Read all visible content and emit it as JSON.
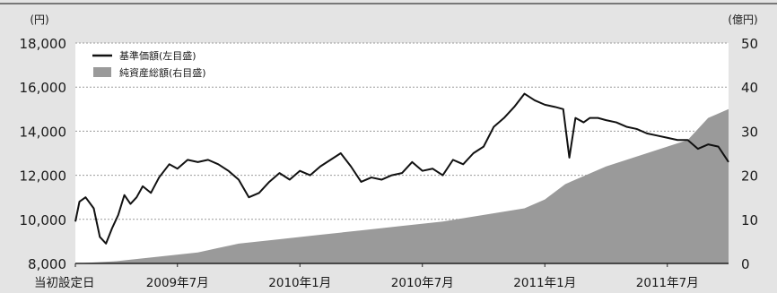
{
  "chart_data": {
    "type": "line",
    "y_unit_left": "(円)",
    "y_unit_right": "(億円)",
    "ylim_left": [
      8000,
      18000
    ],
    "ylim_right": [
      0,
      50
    ],
    "yticks_left": [
      "8,000",
      "10,000",
      "12,000",
      "14,000",
      "16,000",
      "18,000"
    ],
    "yticks_right": [
      "0",
      "10",
      "20",
      "30",
      "40",
      "50"
    ],
    "x_labels": [
      "当初設定日",
      "2009年7月",
      "2010年1月",
      "2010年7月",
      "2011年1月",
      "2011年7月"
    ],
    "x_label_positions": [
      0,
      5,
      11,
      17,
      23,
      29
    ],
    "x_range": [
      0,
      32
    ],
    "grid": "horizontal-dashed",
    "legend_position": "top-left",
    "series": [
      {
        "name": "基準価額(左目盛)",
        "axis": "left",
        "style": "line",
        "color": "#111111",
        "x": [
          0,
          0.2,
          0.5,
          0.9,
          1.2,
          1.5,
          1.8,
          2.1,
          2.4,
          2.7,
          3.0,
          3.3,
          3.7,
          4.1,
          4.6,
          5.0,
          5.5,
          6.0,
          6.5,
          7.0,
          7.5,
          8.0,
          8.5,
          9.0,
          9.5,
          10.0,
          10.5,
          11.0,
          11.5,
          12.0,
          12.5,
          13.0,
          13.5,
          14.0,
          14.5,
          15.0,
          15.5,
          16.0,
          16.5,
          17.0,
          17.5,
          18.0,
          18.5,
          19.0,
          19.5,
          20.0,
          20.5,
          21.0,
          21.5,
          22.0,
          22.5,
          23.0,
          23.5,
          23.9,
          24.2,
          24.5,
          24.9,
          25.2,
          25.6,
          26.0,
          26.5,
          27.0,
          27.5,
          28.0,
          28.5,
          29.0,
          29.5,
          30.0,
          30.5,
          31.0,
          31.5,
          32.0
        ],
        "values": [
          9900,
          10800,
          11000,
          10500,
          9200,
          8900,
          9600,
          10200,
          11100,
          10700,
          11000,
          11500,
          11200,
          11900,
          12500,
          12300,
          12700,
          12600,
          12700,
          12500,
          12200,
          11800,
          11000,
          11200,
          11700,
          12100,
          11800,
          12200,
          12000,
          12400,
          12700,
          13000,
          12400,
          11700,
          11900,
          11800,
          12000,
          12100,
          12600,
          12200,
          12300,
          12000,
          12700,
          12500,
          13000,
          13300,
          14200,
          14600,
          15100,
          15700,
          15400,
          15200,
          15100,
          15000,
          12800,
          14600,
          14400,
          14600,
          14600,
          14500,
          14400,
          14200,
          14100,
          13900,
          13800,
          13700,
          13600,
          13600,
          13200,
          13400,
          13300,
          12600
        ]
      },
      {
        "name": "純資産総額(右目盛)",
        "axis": "right",
        "style": "area",
        "color": "#9a9a9a",
        "x": [
          0,
          2,
          4,
          6,
          7,
          8,
          10,
          12,
          14,
          16,
          18,
          20,
          22,
          23,
          24,
          26,
          28,
          30,
          31,
          32
        ],
        "values": [
          0,
          0.5,
          1.5,
          2.5,
          3.5,
          4.5,
          5.5,
          6.5,
          7.5,
          8.5,
          9.5,
          11,
          12.5,
          14.5,
          18,
          22,
          25,
          28,
          33,
          35
        ]
      }
    ]
  }
}
